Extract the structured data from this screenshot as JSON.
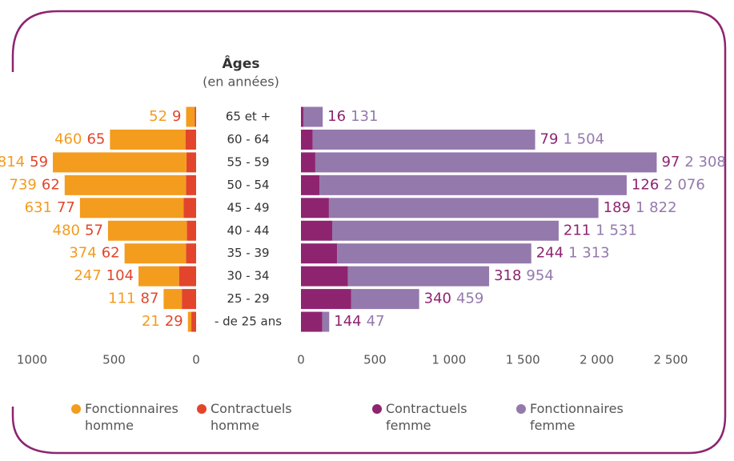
{
  "chart_data": {
    "type": "bar",
    "orientation": "horizontal",
    "stacked": true,
    "title": "Âges",
    "subtitle": "(en années)",
    "categories": [
      "65 et +",
      "60 - 64",
      "55 - 59",
      "50 - 54",
      "45 - 49",
      "40 - 44",
      "35 - 39",
      "30 - 34",
      "25 - 29",
      "- de 25 ans"
    ],
    "series": [
      {
        "name": "Fonctionnaires homme",
        "color": "#f39c1e",
        "axis": "x",
        "values": [
          52,
          460,
          814,
          739,
          631,
          480,
          374,
          247,
          111,
          21
        ]
      },
      {
        "name": "Contractuels homme",
        "color": "#e2452b",
        "axis": "x",
        "values": [
          9,
          65,
          59,
          62,
          77,
          57,
          62,
          104,
          87,
          29
        ]
      },
      {
        "name": "Contractuels femme",
        "color": "#8e2470",
        "axis": "x2",
        "values": [
          16,
          79,
          97,
          126,
          189,
          211,
          244,
          318,
          340,
          144
        ]
      },
      {
        "name": "Fonctionnaires femme",
        "color": "#9479ac",
        "axis": "x2",
        "values": [
          131,
          1504,
          2308,
          2076,
          1822,
          1531,
          1313,
          954,
          459,
          47
        ],
        "value_labels": [
          "131",
          "1 504",
          "2 308",
          "2 076",
          "1 822",
          "1 531",
          "1 313",
          "954",
          "459",
          "47"
        ]
      }
    ],
    "xlim": [
      0,
      1000
    ],
    "xreverse": true,
    "xticks": [
      1000,
      500,
      0
    ],
    "x2lim": [
      0,
      2500
    ],
    "x2ticks": [
      0,
      500,
      {
        "value": 1000,
        "label": "1 000"
      },
      {
        "value": 1500,
        "label": "1 500"
      },
      {
        "value": 2000,
        "label": "2 000"
      },
      {
        "value": 2500,
        "label": "2 500"
      }
    ],
    "grid": false,
    "legend": "bottom"
  }
}
